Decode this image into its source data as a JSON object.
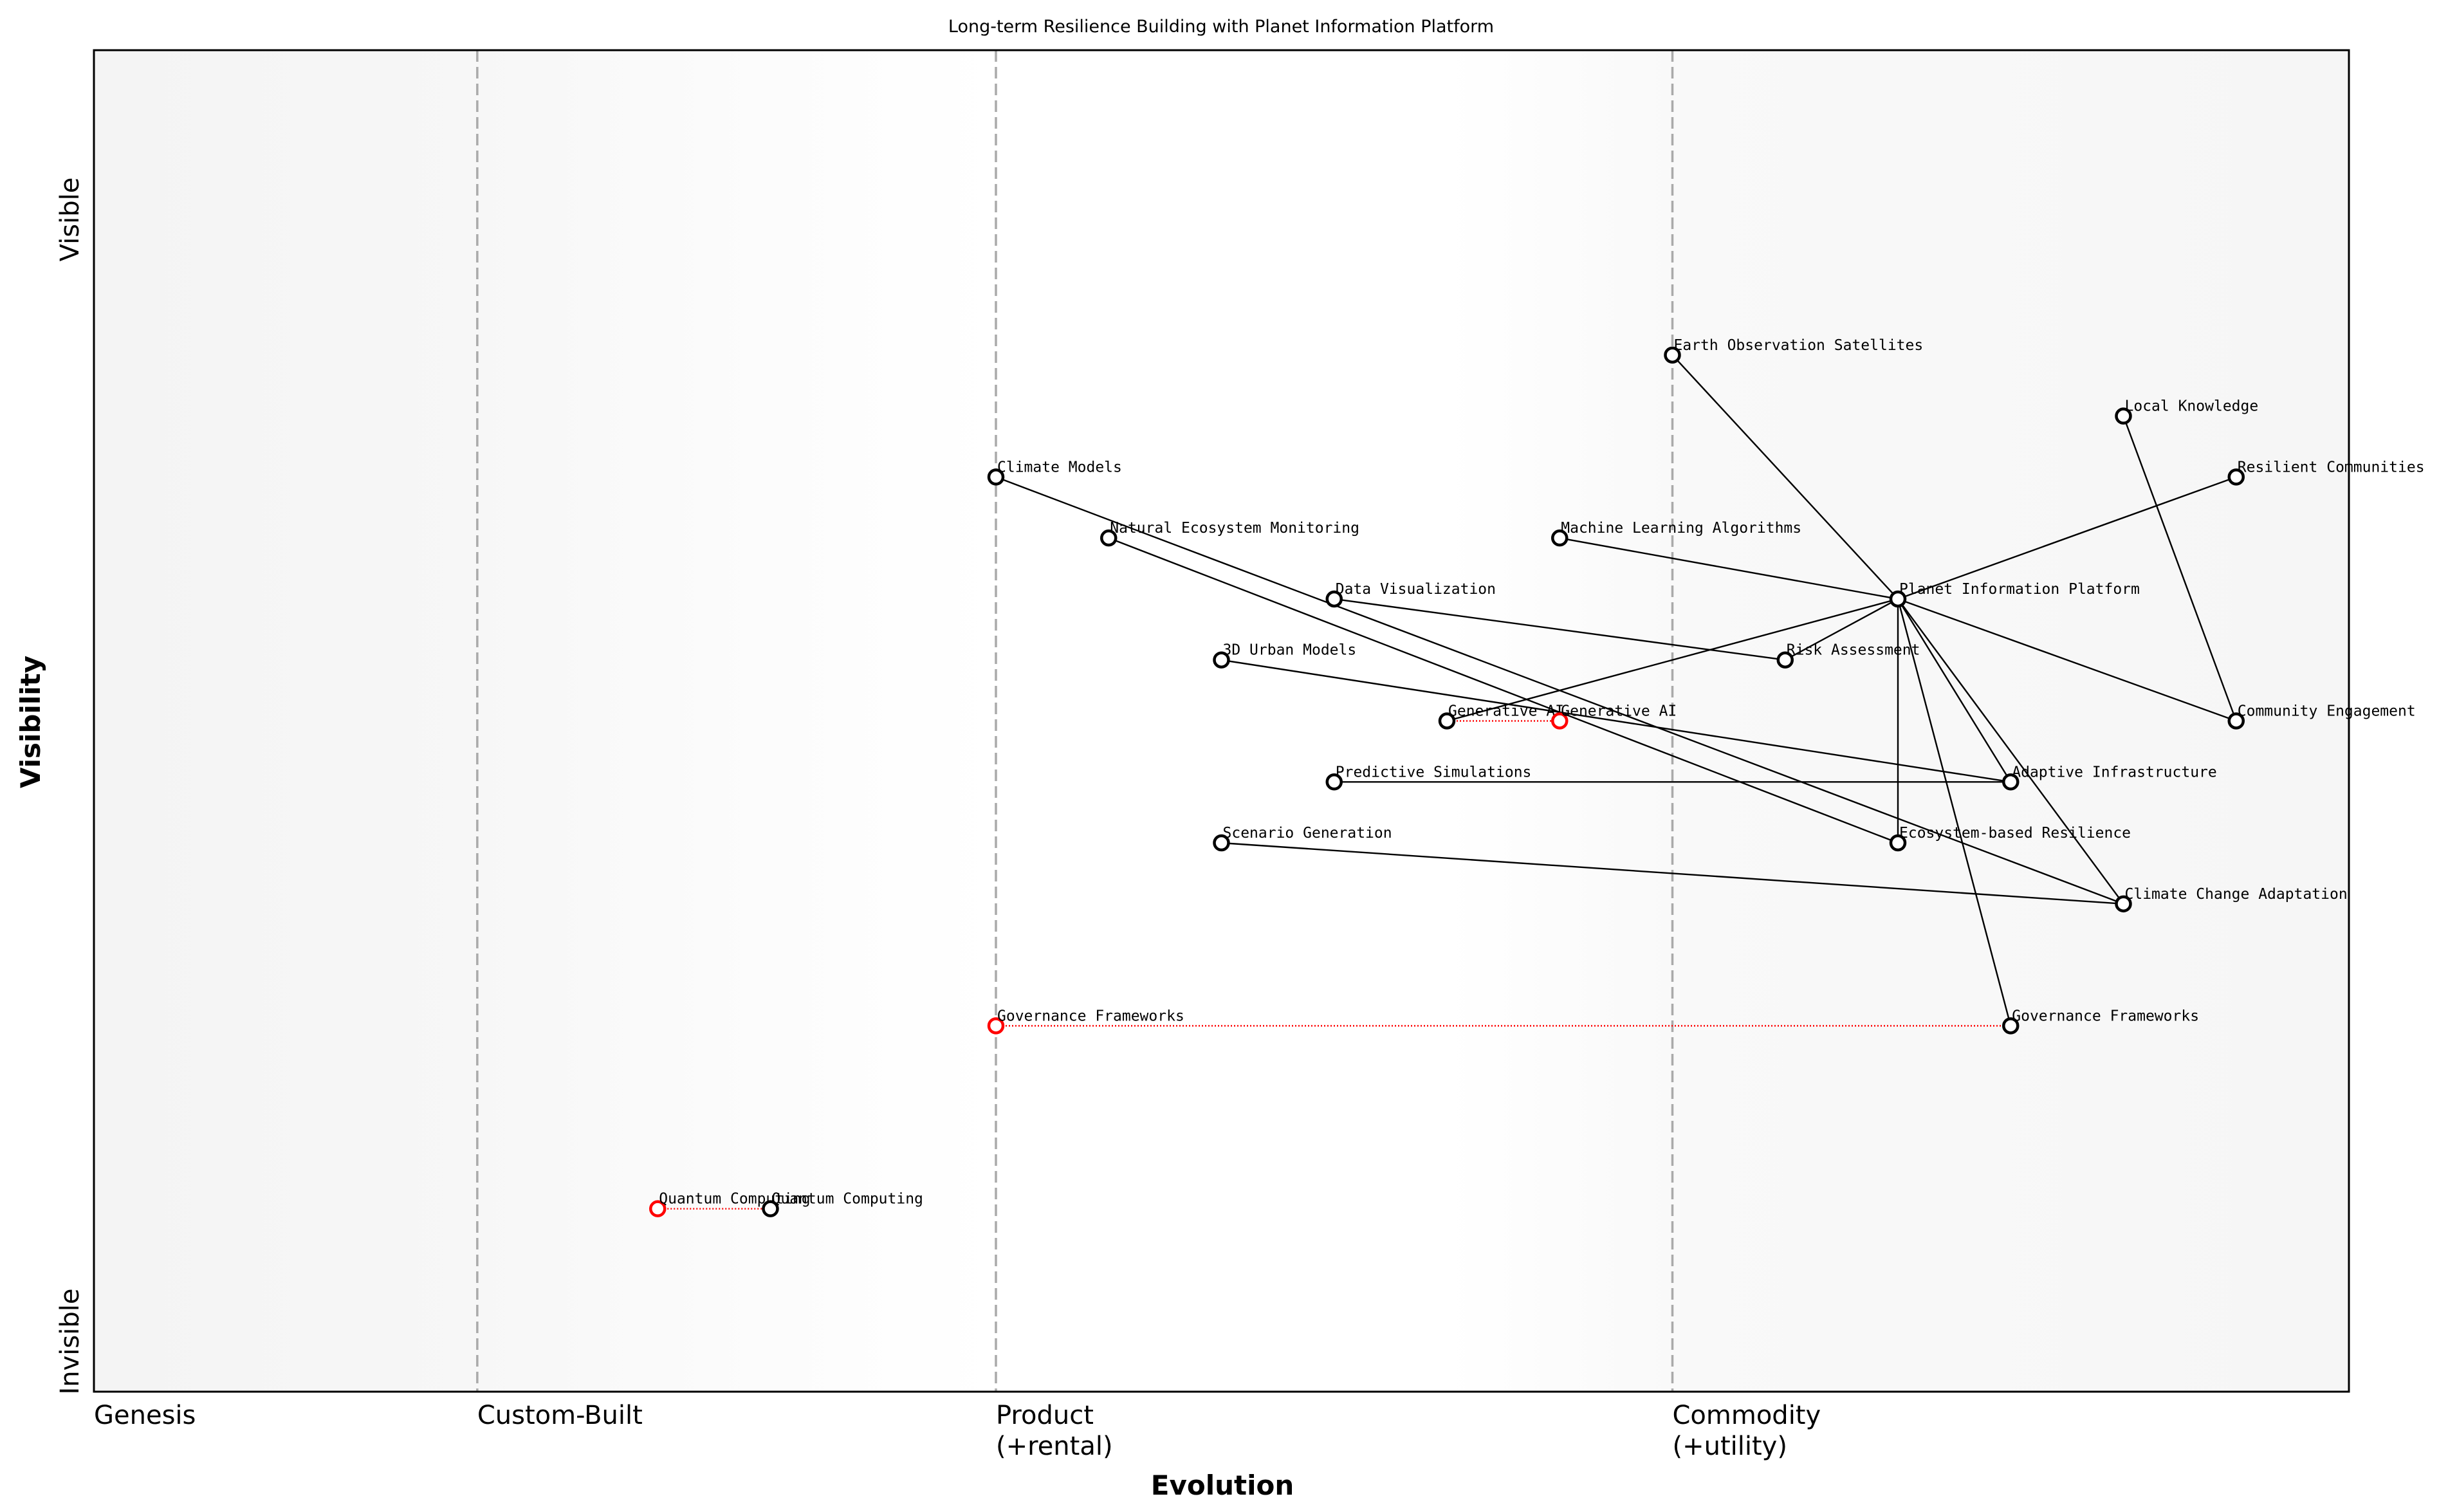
{
  "chart_data": {
    "type": "wardley-map",
    "title": "Long-term Resilience Building with Planet Information Platform",
    "xlabel": "Evolution",
    "ylabel": "Visibility",
    "y_top_label": "Visible",
    "y_bottom_label": "Invisible",
    "xlim": [
      0,
      1
    ],
    "ylim": [
      0,
      1.1
    ],
    "stages": [
      {
        "label": "Genesis",
        "position": 0.0
      },
      {
        "label": "Custom-Built",
        "position": 0.17
      },
      {
        "label": "Product\n(+rental)",
        "position": 0.4
      },
      {
        "label": "Commodity\n(+utility)",
        "position": 0.7
      }
    ],
    "colors": {
      "component": "#000000",
      "evolved": "#ff0000",
      "stage_line": "#aaaaaa"
    },
    "nodes": [
      {
        "name": "Earth Observation Satellites",
        "evolution": 0.7,
        "visibility": 0.85,
        "color": "#000000"
      },
      {
        "name": "Local Knowledge",
        "evolution": 0.9,
        "visibility": 0.8,
        "color": "#000000"
      },
      {
        "name": "Resilient Communities",
        "evolution": 0.95,
        "visibility": 0.75,
        "color": "#000000"
      },
      {
        "name": "Climate Models",
        "evolution": 0.4,
        "visibility": 0.75,
        "color": "#000000"
      },
      {
        "name": "Natural Ecosystem Monitoring",
        "evolution": 0.45,
        "visibility": 0.7,
        "color": "#000000"
      },
      {
        "name": "Machine Learning Algorithms",
        "evolution": 0.65,
        "visibility": 0.7,
        "color": "#000000"
      },
      {
        "name": "Planet Information Platform",
        "evolution": 0.8,
        "visibility": 0.65,
        "color": "#000000"
      },
      {
        "name": "Data Visualization",
        "evolution": 0.55,
        "visibility": 0.65,
        "color": "#000000"
      },
      {
        "name": "3D Urban Models",
        "evolution": 0.5,
        "visibility": 0.6,
        "color": "#000000"
      },
      {
        "name": "Risk Assessment",
        "evolution": 0.75,
        "visibility": 0.6,
        "color": "#000000"
      },
      {
        "name": "Generative AI",
        "evolution": 0.6,
        "visibility": 0.55,
        "color": "#000000"
      },
      {
        "name": "Generative AI",
        "evolution": 0.65,
        "visibility": 0.55,
        "color": "#ff0000"
      },
      {
        "name": "Community Engagement",
        "evolution": 0.95,
        "visibility": 0.55,
        "color": "#000000"
      },
      {
        "name": "Predictive Simulations",
        "evolution": 0.55,
        "visibility": 0.5,
        "color": "#000000"
      },
      {
        "name": "Adaptive Infrastructure",
        "evolution": 0.85,
        "visibility": 0.5,
        "color": "#000000"
      },
      {
        "name": "Scenario Generation",
        "evolution": 0.5,
        "visibility": 0.45,
        "color": "#000000"
      },
      {
        "name": "Ecosystem-based Resilience",
        "evolution": 0.8,
        "visibility": 0.45,
        "color": "#000000"
      },
      {
        "name": "Climate Change Adaptation",
        "evolution": 0.9,
        "visibility": 0.4,
        "color": "#000000"
      },
      {
        "name": "Governance Frameworks",
        "evolution": 0.4,
        "visibility": 0.3,
        "color": "#ff0000"
      },
      {
        "name": "Governance Frameworks",
        "evolution": 0.85,
        "visibility": 0.3,
        "color": "#000000"
      },
      {
        "name": "Quantum Computing",
        "evolution": 0.25,
        "visibility": 0.15,
        "color": "#ff0000"
      },
      {
        "name": "Quantum Computing",
        "evolution": 0.3,
        "visibility": 0.15,
        "color": "#000000"
      }
    ],
    "links": [
      {
        "from": "Earth Observation Satellites",
        "to": "Planet Information Platform"
      },
      {
        "from": "Resilient Communities",
        "to": "Planet Information Platform"
      },
      {
        "from": "Local Knowledge",
        "to": "Community Engagement"
      },
      {
        "from": "Machine Learning Algorithms",
        "to": "Planet Information Platform"
      },
      {
        "from": "Risk Assessment",
        "to": "Planet Information Platform"
      },
      {
        "from": "Generative AI",
        "to": "Planet Information Platform"
      },
      {
        "from": "Planet Information Platform",
        "to": "Community Engagement"
      },
      {
        "from": "Planet Information Platform",
        "to": "Adaptive Infrastructure"
      },
      {
        "from": "Planet Information Platform",
        "to": "Ecosystem-based Resilience"
      },
      {
        "from": "Planet Information Platform",
        "to": "Climate Change Adaptation"
      },
      {
        "from": "Planet Information Platform",
        "to": "Governance Frameworks"
      },
      {
        "from": "Climate Models",
        "to": "Climate Change Adaptation"
      },
      {
        "from": "Natural Ecosystem Monitoring",
        "to": "Ecosystem-based Resilience"
      },
      {
        "from": "Data Visualization",
        "to": "Risk Assessment"
      },
      {
        "from": "3D Urban Models",
        "to": "Adaptive Infrastructure"
      },
      {
        "from": "Predictive Simulations",
        "to": "Adaptive Infrastructure"
      },
      {
        "from": "Scenario Generation",
        "to": "Climate Change Adaptation"
      }
    ],
    "evolutions": [
      {
        "component": "Generative AI",
        "from": 0.6,
        "to": 0.65
      },
      {
        "component": "Governance Frameworks",
        "from": 0.4,
        "to": 0.85
      },
      {
        "component": "Quantum Computing",
        "from": 0.25,
        "to": 0.3
      }
    ]
  }
}
